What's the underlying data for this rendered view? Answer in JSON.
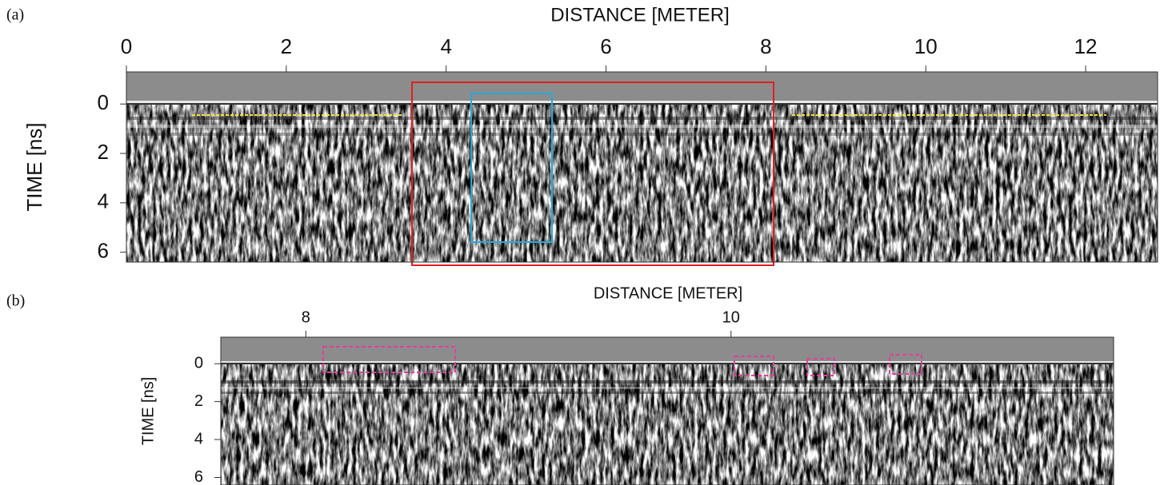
{
  "chart_data": [
    {
      "type": "radargram",
      "panel_label": "(a)",
      "title": "DISTANCE [METER]",
      "y_label": "TIME [ns]",
      "xlim": [
        0,
        12.9
      ],
      "xticks": [
        0,
        2,
        4,
        6,
        8,
        10,
        12
      ],
      "ylim": [
        6.4,
        -1.3
      ],
      "yticks": [
        0,
        2,
        4,
        6
      ]
    },
    {
      "type": "radargram",
      "panel_label": "(b)",
      "title": "DISTANCE [METER]",
      "y_label": "TIME [ns]",
      "xlim": [
        7.6,
        11.8
      ],
      "xticks": [
        8,
        10
      ],
      "ylim": [
        6.4,
        -1.4
      ],
      "yticks": [
        0,
        2,
        4,
        6
      ]
    }
  ]
}
